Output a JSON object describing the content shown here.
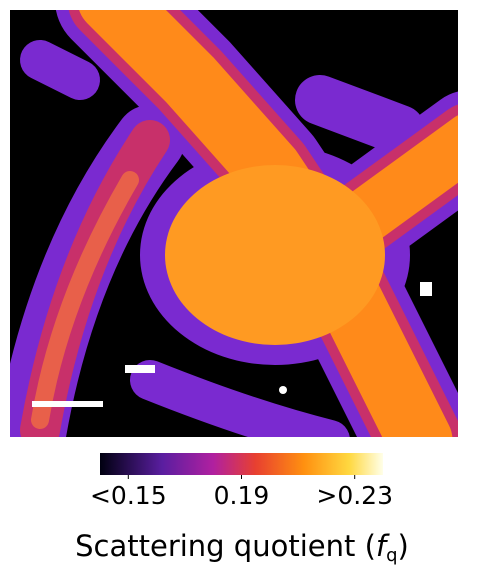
{
  "chart_data": {
    "type": "image",
    "colorbar": {
      "clim": [
        0.14,
        0.24
      ],
      "ticks": [
        {
          "value": 0.15,
          "label": "<0.15"
        },
        0.19,
        {
          "value": 0.23,
          "label": ">0.23"
        }
      ]
    },
    "label_prefix": "Scattering quotient (",
    "label_symbol": "f",
    "label_subscript": "q",
    "label_suffix": ")"
  }
}
